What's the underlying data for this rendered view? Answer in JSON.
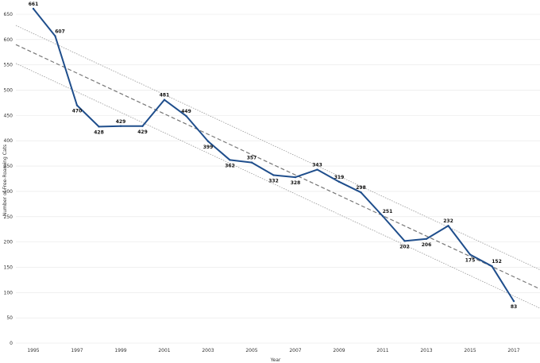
{
  "chart_data": {
    "type": "line",
    "xlabel": "Year",
    "ylabel": "Number of Free-Roaming Cats",
    "xlim": [
      1994.2,
      2018.2
    ],
    "ylim": [
      0,
      650
    ],
    "y_ticks": [
      0,
      50,
      100,
      150,
      200,
      250,
      300,
      350,
      400,
      450,
      500,
      550,
      600,
      650
    ],
    "x_ticks": [
      1995,
      1997,
      1999,
      2001,
      2003,
      2005,
      2007,
      2009,
      2011,
      2013,
      2015,
      2017
    ],
    "grid": "horizontal",
    "series": [
      {
        "values": [
          {
            "x": 1995,
            "y": 661
          },
          {
            "x": 1996,
            "y": 607
          },
          {
            "x": 1997,
            "y": 470
          },
          {
            "x": 1998,
            "y": 428
          },
          {
            "x": 1999,
            "y": 429
          },
          {
            "x": 2000,
            "y": 429
          },
          {
            "x": 2001,
            "y": 481
          },
          {
            "x": 2002,
            "y": 449
          },
          {
            "x": 2003,
            "y": 399
          },
          {
            "x": 2004,
            "y": 362
          },
          {
            "x": 2005,
            "y": 357
          },
          {
            "x": 2006,
            "y": 332
          },
          {
            "x": 2007,
            "y": 328
          },
          {
            "x": 2008,
            "y": 343
          },
          {
            "x": 2009,
            "y": 319
          },
          {
            "x": 2010,
            "y": 298
          },
          {
            "x": 2011,
            "y": 251
          },
          {
            "x": 2012,
            "y": 202
          },
          {
            "x": 2013,
            "y": 206
          },
          {
            "x": 2014,
            "y": 232
          },
          {
            "x": 2015,
            "y": 175
          },
          {
            "x": 2016,
            "y": 152
          },
          {
            "x": 2017,
            "y": 83
          }
        ],
        "color": "#1f4e8c"
      }
    ],
    "trend_line": {
      "x": [
        1994.2,
        2018.2
      ],
      "y": [
        590,
        107
      ],
      "color": "#777777",
      "style": "dashed"
    },
    "confidence_band": {
      "upper": {
        "x": [
          1994.2,
          2018.2
        ],
        "y": [
          628,
          145
        ]
      },
      "lower": {
        "x": [
          1994.2,
          2018.2
        ],
        "y": [
          553,
          69
        ]
      },
      "color": "#999999",
      "style": "dotted"
    }
  }
}
